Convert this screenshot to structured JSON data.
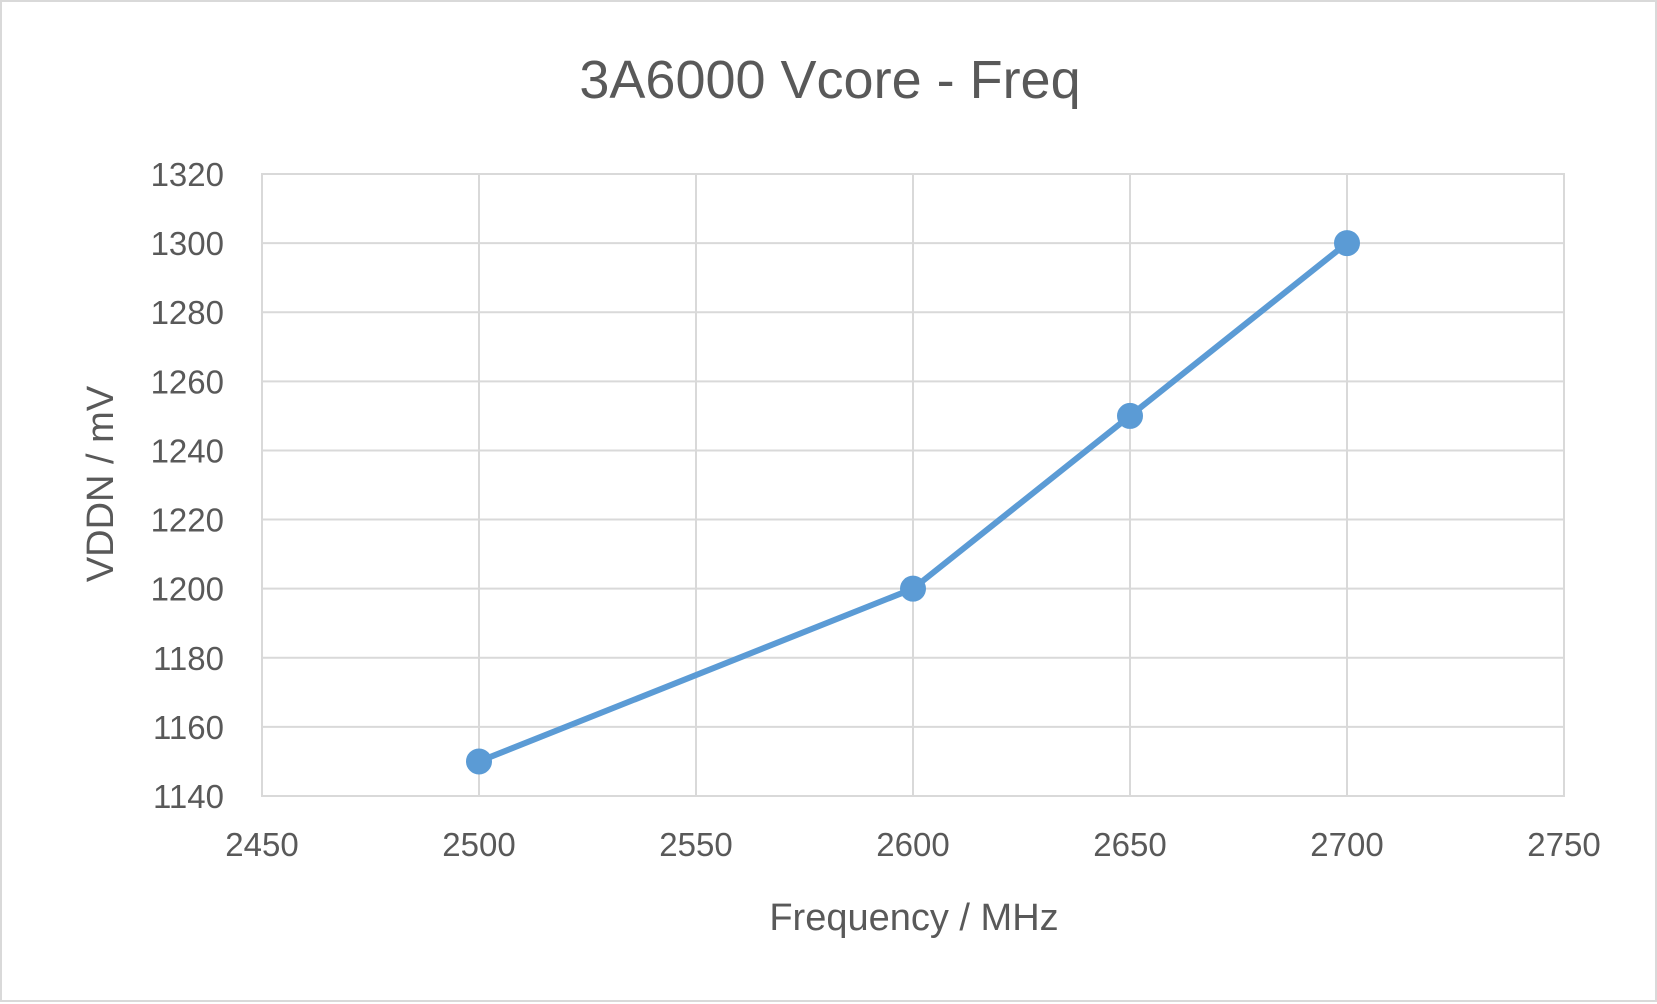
{
  "chart_data": {
    "type": "line",
    "title": "3A6000 Vcore - Freq",
    "xlabel": "Frequency / MHz",
    "ylabel": "VDDN / mV",
    "xlim": [
      2450,
      2750
    ],
    "x_ticks": [
      2450,
      2500,
      2550,
      2600,
      2650,
      2700,
      2750
    ],
    "ylim": [
      1140,
      1320
    ],
    "y_ticks": [
      1140,
      1160,
      1180,
      1200,
      1220,
      1240,
      1260,
      1280,
      1300,
      1320
    ],
    "grid": true,
    "legend": "none",
    "series": [
      {
        "color": "#5b9bd5",
        "marker": "circle",
        "points": [
          {
            "x": 2500,
            "y": 1150
          },
          {
            "x": 2600,
            "y": 1200
          },
          {
            "x": 2650,
            "y": 1250
          },
          {
            "x": 2700,
            "y": 1300
          }
        ]
      }
    ],
    "colors": {
      "grid": "#d9d9d9",
      "text": "#595959",
      "border": "#d9d9d9"
    }
  }
}
